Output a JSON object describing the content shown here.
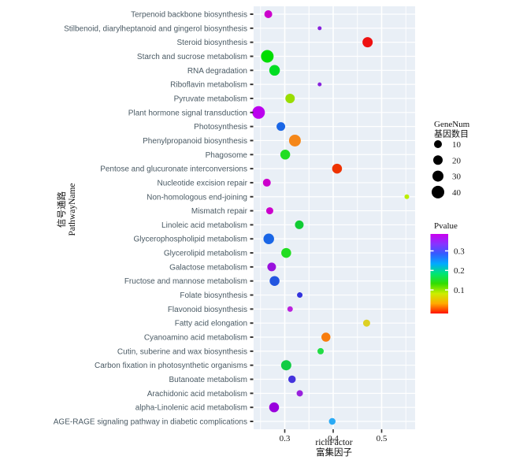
{
  "chart_data": {
    "type": "scatter",
    "subtype": "bubble-enrichment-dotplot",
    "xlabel": "richFactor",
    "xlabel_cn": "富集因子",
    "ylabel": "PathwayName",
    "ylabel_cn": "信号通路",
    "x_ticks": [
      0.3,
      0.4,
      0.5
    ],
    "xlim": [
      0.236,
      0.569
    ],
    "grid": true,
    "panel_color": "#e9eff6",
    "gridline_color": "#ffffff",
    "label_color": "#4a5a64",
    "legend_size": {
      "title": "GeneNum",
      "title_cn": "基因数目",
      "values": [
        10,
        20,
        30,
        40
      ],
      "dot_color": "#000000"
    },
    "legend_color": {
      "title": "Pvalue",
      "ticks": [
        0.3,
        0.2,
        0.1
      ],
      "range": [
        0,
        0.386
      ],
      "gradient": [
        "#cc00ee",
        "#8833ff",
        "#335cff",
        "#00aaff",
        "#00e673",
        "#33dd00",
        "#ccee00",
        "#ffaa00",
        "#ff1100"
      ]
    },
    "points": [
      {
        "label": "Terpenoid backbone biosynthesis",
        "richFactor": 0.266,
        "geneNum": 10,
        "pvalue": 0.33,
        "color": "#cc00cc",
        "size": 10
      },
      {
        "label": "Stilbenoid, diarylheptanoid and gingerol biosynthesis",
        "richFactor": 0.372,
        "geneNum": 3,
        "pvalue": 0.31,
        "color": "#8822dd",
        "size": 5
      },
      {
        "label": "Steroid biosynthesis",
        "richFactor": 0.471,
        "geneNum": 20,
        "pvalue": 0.01,
        "color": "#ee1111",
        "size": 13
      },
      {
        "label": "Starch and sucrose metabolism",
        "richFactor": 0.264,
        "geneNum": 40,
        "pvalue": 0.18,
        "color": "#00dd00",
        "size": 16
      },
      {
        "label": "RNA degradation",
        "richFactor": 0.279,
        "geneNum": 28,
        "pvalue": 0.18,
        "color": "#00dd22",
        "size": 13.5
      },
      {
        "label": "Riboflavin metabolism",
        "richFactor": 0.372,
        "geneNum": 3,
        "pvalue": 0.31,
        "color": "#8822dd",
        "size": 5
      },
      {
        "label": "Pyruvate metabolism",
        "richFactor": 0.311,
        "geneNum": 16,
        "pvalue": 0.12,
        "color": "#99dd00",
        "size": 12
      },
      {
        "label": "Plant hormone signal transduction",
        "richFactor": 0.246,
        "geneNum": 40,
        "pvalue": 0.34,
        "color": "#bb00ee",
        "size": 16
      },
      {
        "label": "Photosynthesis",
        "richFactor": 0.292,
        "geneNum": 13,
        "pvalue": 0.28,
        "color": "#1a66e6",
        "size": 11
      },
      {
        "label": "Phenylpropanoid biosynthesis",
        "richFactor": 0.321,
        "geneNum": 35,
        "pvalue": 0.06,
        "color": "#f58719",
        "size": 15
      },
      {
        "label": "Phagosome",
        "richFactor": 0.301,
        "geneNum": 20,
        "pvalue": 0.17,
        "color": "#22dd22",
        "size": 12.5
      },
      {
        "label": "Pentose and glucuronate interconversions",
        "richFactor": 0.408,
        "geneNum": 20,
        "pvalue": 0.03,
        "color": "#ee3300",
        "size": 12.5
      },
      {
        "label": "Nucleotide excision repair",
        "richFactor": 0.263,
        "geneNum": 10,
        "pvalue": 0.33,
        "color": "#cc00cc",
        "size": 10
      },
      {
        "label": "Non-homologous end-joining",
        "richFactor": 0.552,
        "geneNum": 4,
        "pvalue": 0.1,
        "color": "#bbee00",
        "size": 6
      },
      {
        "label": "Mismatch repair",
        "richFactor": 0.269,
        "geneNum": 8,
        "pvalue": 0.33,
        "color": "#cc00cc",
        "size": 9
      },
      {
        "label": "Linoleic acid metabolism",
        "richFactor": 0.33,
        "geneNum": 13,
        "pvalue": 0.19,
        "color": "#11cc33",
        "size": 11
      },
      {
        "label": "Glycerophospholipid metabolism",
        "richFactor": 0.267,
        "geneNum": 25,
        "pvalue": 0.28,
        "color": "#1a66e6",
        "size": 13.5
      },
      {
        "label": "Glycerolipid metabolism",
        "richFactor": 0.303,
        "geneNum": 20,
        "pvalue": 0.17,
        "color": "#22dd22",
        "size": 12.5
      },
      {
        "label": "Galactose metabolism",
        "richFactor": 0.273,
        "geneNum": 13,
        "pvalue": 0.32,
        "color": "#9911dd",
        "size": 11
      },
      {
        "label": "Fructose and mannose metabolism",
        "richFactor": 0.279,
        "geneNum": 18,
        "pvalue": 0.28,
        "color": "#2255e0",
        "size": 12.5
      },
      {
        "label": "Folate biosynthesis",
        "richFactor": 0.331,
        "geneNum": 5,
        "pvalue": 0.3,
        "color": "#3333dd",
        "size": 7
      },
      {
        "label": "Flavonoid biosynthesis",
        "richFactor": 0.311,
        "geneNum": 5,
        "pvalue": 0.33,
        "color": "#bb22dd",
        "size": 7
      },
      {
        "label": "Fatty acid elongation",
        "richFactor": 0.469,
        "geneNum": 8,
        "pvalue": 0.08,
        "color": "#ddd022",
        "size": 9
      },
      {
        "label": "Cyanoamino acid metabolism",
        "richFactor": 0.385,
        "geneNum": 15,
        "pvalue": 0.05,
        "color": "#f87d0e",
        "size": 11.5
      },
      {
        "label": "Cutin, suberine and wax biosynthesis",
        "richFactor": 0.374,
        "geneNum": 7,
        "pvalue": 0.19,
        "color": "#22dd44",
        "size": 8
      },
      {
        "label": "Carbon fixation in photosynthetic organisms",
        "richFactor": 0.303,
        "geneNum": 22,
        "pvalue": 0.18,
        "color": "#11cc44",
        "size": 13
      },
      {
        "label": "Butanoate metabolism",
        "richFactor": 0.315,
        "geneNum": 9,
        "pvalue": 0.3,
        "color": "#4433dd",
        "size": 9.5
      },
      {
        "label": "Arachidonic acid metabolism",
        "richFactor": 0.331,
        "geneNum": 6,
        "pvalue": 0.32,
        "color": "#9922dd",
        "size": 8
      },
      {
        "label": "alpha-Linolenic acid metabolism",
        "richFactor": 0.278,
        "geneNum": 18,
        "pvalue": 0.33,
        "color": "#9900dd",
        "size": 12.5
      },
      {
        "label": "AGE-RAGE signaling pathway in diabetic complications",
        "richFactor": 0.398,
        "geneNum": 8,
        "pvalue": 0.25,
        "color": "#29aaf5",
        "size": 8.5
      }
    ]
  }
}
